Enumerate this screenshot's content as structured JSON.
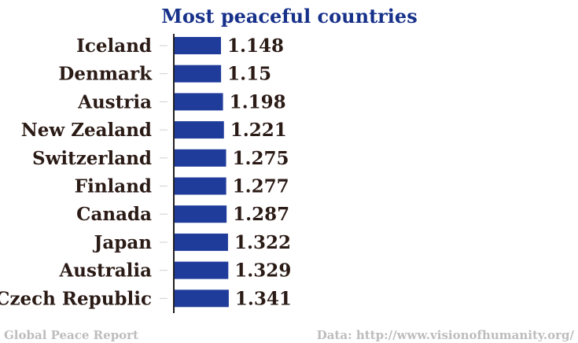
{
  "chart_data": {
    "type": "bar",
    "orientation": "horizontal",
    "title": "Most peaceful countries",
    "categories": [
      "Iceland",
      "Denmark",
      "Austria",
      "New Zealand",
      "Switzerland",
      "Finland",
      "Canada",
      "Japan",
      "Australia",
      "Czech Republic"
    ],
    "values": [
      1.148,
      1.15,
      1.198,
      1.221,
      1.275,
      1.277,
      1.287,
      1.322,
      1.329,
      1.341
    ],
    "value_labels": [
      "1.148",
      "1.15",
      "1.198",
      "1.221",
      "1.275",
      "1.277",
      "1.287",
      "1.322",
      "1.329",
      "1.341"
    ],
    "xlabel": "",
    "ylabel": "",
    "xlim": [
      0,
      6.2
    ],
    "grid": false,
    "legend": "none",
    "bar_color": "#1f3c9b",
    "source_left": "Global Peace Report",
    "source_right": "Data: http://www.visionofhumanity.org/"
  },
  "colors": {
    "title": "#17318a",
    "labels": "#2b1b16",
    "footer": "#bdbdbd",
    "axis": "#222222",
    "ticks": "#cfcfcf"
  }
}
